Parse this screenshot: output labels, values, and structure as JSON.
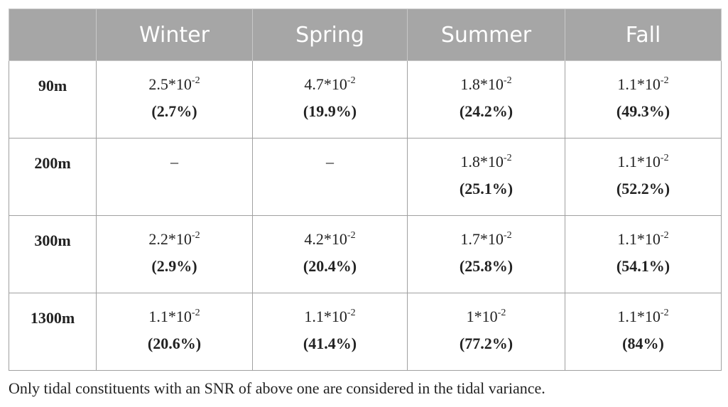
{
  "table": {
    "columns": [
      "Winter",
      "Spring",
      "Summer",
      "Fall"
    ],
    "rows": [
      {
        "label": "90m",
        "cells": [
          {
            "base": "2.5*10",
            "exp": "-2",
            "pct": "(2.7%)"
          },
          {
            "base": "4.7*10",
            "exp": "-2",
            "pct": "(19.9%)"
          },
          {
            "base": "1.8*10",
            "exp": "-2",
            "pct": "(24.2%)"
          },
          {
            "base": "1.1*10",
            "exp": "-2",
            "pct": "(49.3%)"
          }
        ]
      },
      {
        "label": "200m",
        "cells": [
          {
            "text": "–"
          },
          {
            "text": "–"
          },
          {
            "base": "1.8*10",
            "exp": "-2",
            "pct": "(25.1%)"
          },
          {
            "base": "1.1*10",
            "exp": "-2",
            "pct": "(52.2%)"
          }
        ]
      },
      {
        "label": "300m",
        "cells": [
          {
            "base": "2.2*10",
            "exp": "-2",
            "pct": "(2.9%)"
          },
          {
            "base": "4.2*10",
            "exp": "-2",
            "pct": "(20.4%)"
          },
          {
            "base": "1.7*10",
            "exp": "-2",
            "pct": "(25.8%)"
          },
          {
            "base": "1.1*10",
            "exp": "-2",
            "pct": "(54.1%)"
          }
        ]
      },
      {
        "label": "1300m",
        "cells": [
          {
            "base": "1.1*10",
            "exp": "-2",
            "pct": "(20.6%)"
          },
          {
            "base": "1.1*10",
            "exp": "-2",
            "pct": "(41.4%)"
          },
          {
            "base": "1*10",
            "exp": "-2",
            "pct": "(77.2%)"
          },
          {
            "base": "1.1*10",
            "exp": "-2",
            "pct": "(84%)"
          }
        ]
      }
    ]
  },
  "footnote": "Only tidal constituents with an SNR of above one are considered in the tidal variance."
}
